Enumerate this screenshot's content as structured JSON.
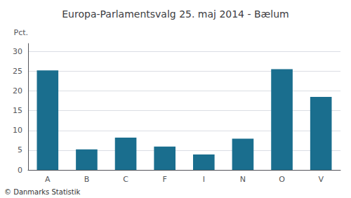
{
  "chart_data": {
    "type": "bar",
    "title": "Europa-Parlamentsvalg 25. maj 2014 - Bælum",
    "categories": [
      "A",
      "B",
      "C",
      "F",
      "I",
      "N",
      "O",
      "V"
    ],
    "values": [
      25.2,
      5.2,
      8.2,
      5.9,
      3.9,
      7.9,
      25.5,
      18.5
    ],
    "color": "#1a6e8e",
    "ylabel": "Pct.",
    "ylim": [
      0,
      32
    ],
    "yticks": [
      0,
      5,
      10,
      15,
      20,
      25,
      30
    ],
    "grid": true,
    "annotations": [
      "© Danmarks Statistik"
    ]
  }
}
